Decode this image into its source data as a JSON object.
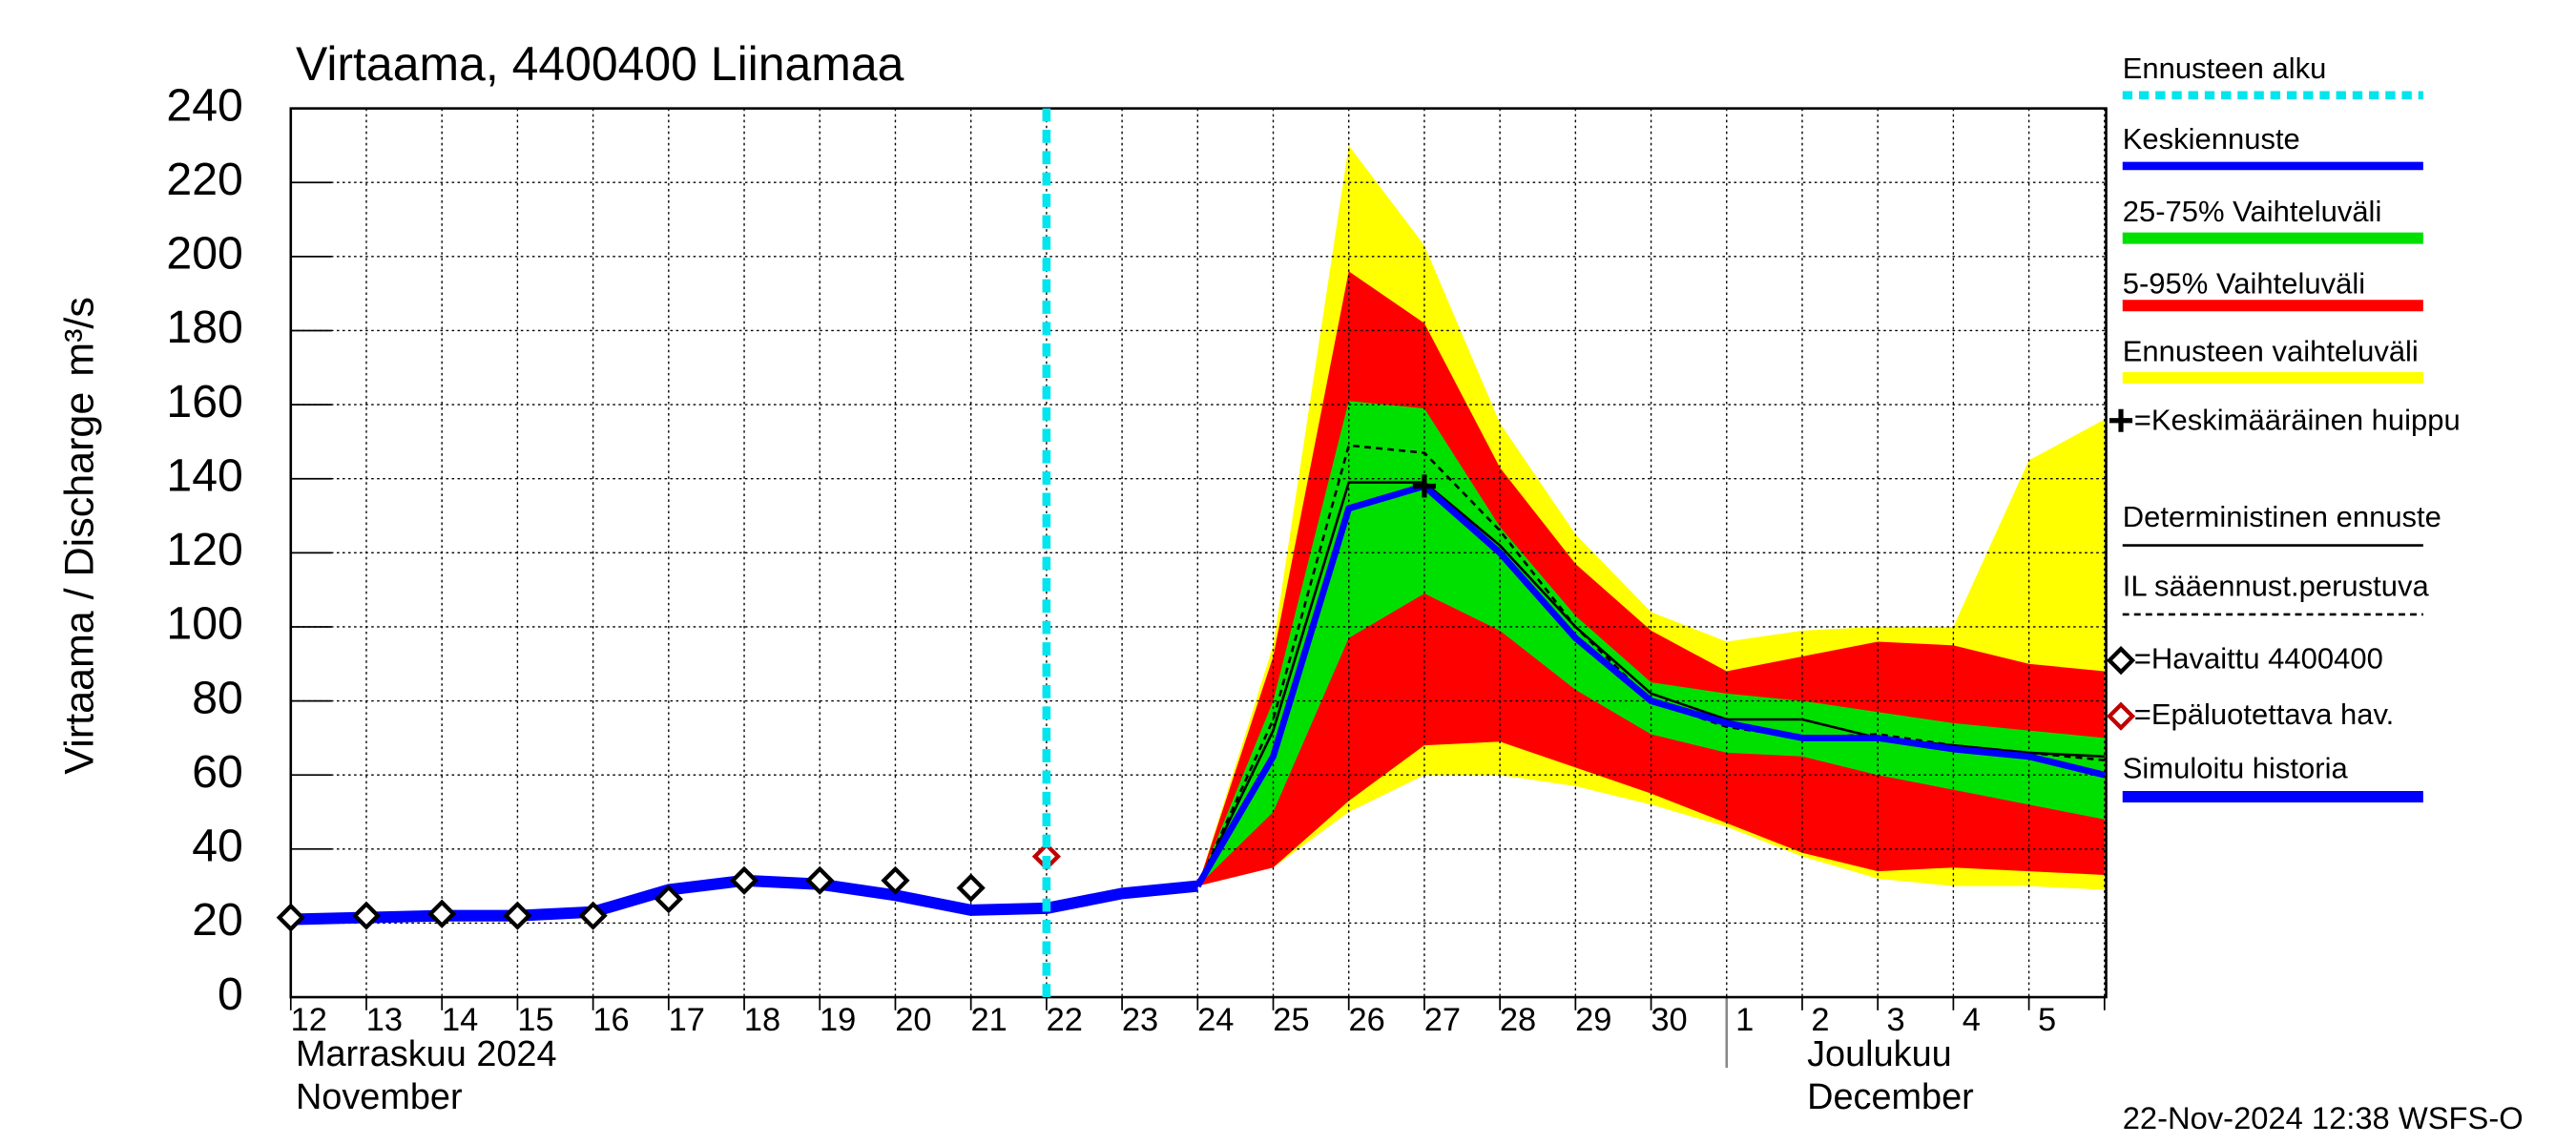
{
  "chart_data": {
    "type": "forecast-band",
    "title": "Virtaama, 4400400 Liinamaa",
    "y_label": "Virtaama / Discharge",
    "y_unit": "m³/s",
    "footer": "22-Nov-2024 12:38 WSFS-O",
    "categories": [
      "12",
      "13",
      "14",
      "15",
      "16",
      "17",
      "18",
      "19",
      "20",
      "21",
      "22",
      "23",
      "24",
      "25",
      "26",
      "27",
      "28",
      "29",
      "30",
      "1",
      "2",
      "3",
      "4",
      "5",
      null
    ],
    "month_labels": [
      [
        "Marraskuu 2024",
        "November"
      ],
      [
        "Joulukuu",
        "December"
      ]
    ],
    "ylim": [
      0,
      240
    ],
    "yticks": [
      0,
      20,
      40,
      60,
      80,
      100,
      120,
      140,
      160,
      180,
      200,
      220,
      240
    ],
    "grid": true,
    "series": [
      {
        "name": "Ennusteen alku",
        "kind": "vline",
        "color": "#00e5ee",
        "at": 10
      },
      {
        "name": "Keskiennuste",
        "kind": "line",
        "style": "solid",
        "color": "#0000ff",
        "values": [
          null,
          null,
          null,
          null,
          null,
          null,
          null,
          null,
          null,
          null,
          null,
          null,
          30,
          65,
          132,
          138,
          120,
          97,
          80,
          74,
          70,
          70,
          67,
          65,
          60
        ]
      },
      {
        "name": "25-75% Vaihteluväli",
        "kind": "band",
        "color": "#00e000",
        "lower": [
          null,
          null,
          null,
          null,
          null,
          null,
          null,
          null,
          null,
          null,
          null,
          null,
          30,
          50,
          97,
          109,
          99,
          83,
          71,
          66,
          65,
          60,
          56,
          52,
          48
        ],
        "upper": [
          null,
          null,
          null,
          null,
          null,
          null,
          null,
          null,
          null,
          null,
          null,
          null,
          30,
          80,
          161,
          159,
          127,
          103,
          85,
          82,
          80,
          77,
          74,
          72,
          70
        ]
      },
      {
        "name": "5-95% Vaihteluväli",
        "kind": "band",
        "color": "#ff0000",
        "lower": [
          null,
          null,
          null,
          null,
          null,
          null,
          null,
          null,
          null,
          null,
          null,
          null,
          30,
          35,
          53,
          68,
          69,
          62,
          55,
          47,
          39,
          34,
          35,
          34,
          33
        ],
        "upper": [
          null,
          null,
          null,
          null,
          null,
          null,
          null,
          null,
          null,
          null,
          null,
          null,
          30,
          92,
          196,
          182,
          143,
          117,
          99,
          88,
          92,
          96,
          95,
          90,
          88
        ]
      },
      {
        "name": "Ennusteen vaihteluväli",
        "kind": "band",
        "color": "#ffff00",
        "lower": [
          null,
          null,
          null,
          null,
          null,
          null,
          null,
          null,
          null,
          null,
          null,
          null,
          30,
          35,
          50,
          60,
          60,
          57,
          52,
          46,
          38,
          32,
          30,
          30,
          29
        ],
        "upper": [
          null,
          null,
          null,
          null,
          null,
          null,
          null,
          null,
          null,
          null,
          null,
          null,
          30,
          95,
          230,
          203,
          155,
          125,
          104,
          96,
          99,
          100,
          100,
          145,
          156
        ]
      },
      {
        "name": "=Keskimääräinen huippu",
        "kind": "marker",
        "marker": "plus",
        "color": "#000000",
        "values": [
          null,
          null,
          null,
          null,
          null,
          null,
          null,
          null,
          null,
          null,
          null,
          null,
          null,
          null,
          null,
          138,
          null,
          null,
          null,
          null,
          null,
          null,
          null,
          null,
          null
        ]
      },
      {
        "name": "Deterministinen ennuste",
        "kind": "line",
        "style": "solid",
        "color": "#000000",
        "values": [
          null,
          null,
          null,
          null,
          null,
          null,
          null,
          null,
          null,
          null,
          null,
          null,
          30,
          72,
          139,
          139,
          122,
          100,
          82,
          75,
          75,
          70,
          68,
          66,
          65
        ]
      },
      {
        "name": "IL sääennust.perustuva",
        "kind": "line",
        "style": "dashed",
        "color": "#000000",
        "values": [
          null,
          null,
          null,
          null,
          null,
          null,
          null,
          null,
          null,
          null,
          null,
          null,
          30,
          75,
          149,
          147,
          126,
          100,
          80,
          73,
          70,
          71,
          68,
          66,
          64
        ]
      },
      {
        "name": "=Havaittu 4400400",
        "kind": "marker",
        "marker": "diamond",
        "color": "#000000",
        "values": [
          21.5,
          22,
          22.5,
          22,
          22,
          26.5,
          31.5,
          31.5,
          31.5,
          29.5,
          null,
          null,
          null,
          null,
          null,
          null,
          null,
          null,
          null,
          null,
          null,
          null,
          null,
          null,
          null
        ]
      },
      {
        "name": "=Epäluotettava hav.",
        "kind": "marker",
        "marker": "diamond",
        "color": "#c00000",
        "values": [
          null,
          null,
          null,
          null,
          null,
          null,
          null,
          null,
          null,
          null,
          38,
          null,
          null,
          null,
          null,
          null,
          null,
          null,
          null,
          null,
          null,
          null,
          null,
          null,
          null
        ]
      },
      {
        "name": "Simuloitu historia",
        "kind": "line",
        "style": "thick",
        "color": "#0000ff",
        "values": [
          21,
          21.5,
          22,
          22,
          23,
          29,
          31.5,
          30.5,
          27.5,
          23.5,
          24,
          28,
          30,
          null,
          null,
          null,
          null,
          null,
          null,
          null,
          null,
          null,
          null,
          null,
          null
        ]
      }
    ]
  }
}
